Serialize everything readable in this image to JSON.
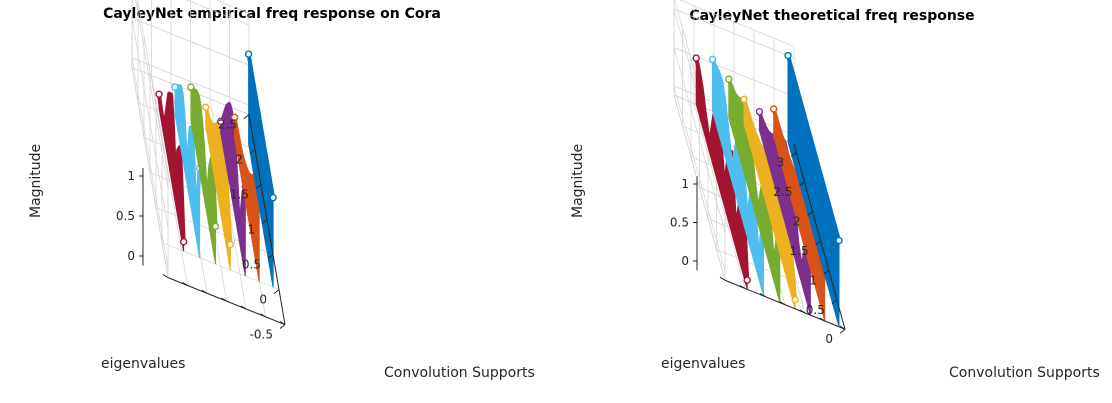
{
  "chart_data": [
    {
      "type": "area",
      "title": "CayleyNet empirical freq response on Cora",
      "xlabel": "eigenvalues",
      "ylabel": "Convolution Supports",
      "zlabel": "Magnitude",
      "xlim": [
        -0.5,
        2.5
      ],
      "zlim": [
        0,
        1
      ],
      "x_ticks": [
        "-0.5",
        "0",
        "0.5",
        "1",
        "1.5",
        "2",
        "2.5"
      ],
      "z_ticks": [
        "0",
        "0.5",
        "1"
      ],
      "grid": true,
      "x": [
        0,
        0.15,
        0.3,
        0.45,
        0.6,
        0.75,
        0.9,
        1.05,
        1.2,
        1.35,
        1.5,
        1.65,
        1.8,
        1.95,
        2.05
      ],
      "series": [
        {
          "color": "#0072bd",
          "values": [
            1.0,
            1.0,
            1.0,
            1.0,
            1.0,
            1.0,
            1.0,
            1.0,
            1.0,
            1.0,
            1.0,
            1.0,
            1.0,
            1.0,
            1.0
          ]
        },
        {
          "color": "#d95319",
          "values": [
            1.0,
            0.97,
            0.9,
            0.8,
            0.68,
            0.55,
            0.44,
            0.35,
            0.28,
            0.22,
            0.18,
            0.16,
            0.15,
            0.14,
            0.14
          ]
        },
        {
          "color": "#7e2f8e",
          "values": [
            1.0,
            0.8,
            0.4,
            0.05,
            0.15,
            0.45,
            0.7,
            0.85,
            0.9,
            0.85,
            0.7,
            0.5,
            0.3,
            0.1,
            0.02
          ]
        },
        {
          "color": "#edb120",
          "values": [
            0.2,
            0.45,
            0.7,
            0.88,
            0.98,
            0.99,
            0.92,
            0.8,
            0.65,
            0.5,
            0.38,
            0.28,
            0.2,
            0.14,
            0.12
          ]
        },
        {
          "color": "#77ac30",
          "values": [
            0.35,
            0.8,
            0.95,
            0.7,
            0.25,
            0.05,
            0.2,
            0.45,
            0.62,
            0.7,
            0.68,
            0.6,
            0.48,
            0.35,
            0.3
          ]
        },
        {
          "color": "#4dbeee",
          "values": [
            1.0,
            0.5,
            0.05,
            0.4,
            0.9,
            0.85,
            0.4,
            0.05,
            0.2,
            0.5,
            0.62,
            0.58,
            0.45,
            0.3,
            0.22
          ]
        },
        {
          "color": "#a2142f",
          "values": [
            0.0,
            0.5,
            0.92,
            0.75,
            0.2,
            0.25,
            0.7,
            0.92,
            0.8,
            0.5,
            0.2,
            0.05,
            0.0,
            0.02,
            0.05
          ]
        }
      ]
    },
    {
      "type": "area",
      "title": "CayleyNet theoretical freq response",
      "xlabel": "eigenvalues",
      "ylabel": "Convolution Supports",
      "zlabel": "Magnitude",
      "xlim": [
        0,
        3.14
      ],
      "zlim": [
        0,
        1
      ],
      "x_ticks": [
        "0",
        "0.5",
        "1",
        "1.5",
        "2",
        "2.5",
        "3"
      ],
      "z_ticks": [
        "0",
        "0.5",
        "1"
      ],
      "grid": true,
      "x": [
        0,
        0.2,
        0.4,
        0.6,
        0.8,
        1.0,
        1.2,
        1.4,
        1.6,
        1.8,
        2.0,
        2.2,
        2.4,
        2.6,
        2.8,
        3.0,
        3.14
      ],
      "series": [
        {
          "color": "#0072bd",
          "values": [
            1.0,
            1.0,
            1.0,
            1.0,
            1.0,
            1.0,
            1.0,
            1.0,
            1.0,
            1.0,
            1.0,
            1.0,
            1.0,
            1.0,
            1.0,
            1.0,
            1.0
          ]
        },
        {
          "color": "#d95319",
          "values": [
            1.0,
            0.98,
            0.93,
            0.86,
            0.78,
            0.69,
            0.6,
            0.52,
            0.45,
            0.39,
            0.34,
            0.3,
            0.27,
            0.25,
            0.24,
            0.23,
            0.23
          ]
        },
        {
          "color": "#7e2f8e",
          "values": [
            1.0,
            0.75,
            0.3,
            0.05,
            0.2,
            0.5,
            0.75,
            0.88,
            0.9,
            0.82,
            0.68,
            0.52,
            0.38,
            0.26,
            0.18,
            0.13,
            0.12
          ]
        },
        {
          "color": "#edb120",
          "values": [
            0.0,
            0.35,
            0.65,
            0.88,
            0.99,
            0.98,
            0.9,
            0.78,
            0.65,
            0.52,
            0.42,
            0.34,
            0.28,
            0.24,
            0.22,
            0.21,
            0.2
          ]
        },
        {
          "color": "#77ac30",
          "values": [
            1.0,
            0.45,
            0.02,
            0.45,
            0.85,
            0.7,
            0.3,
            0.05,
            0.25,
            0.55,
            0.72,
            0.75,
            0.68,
            0.55,
            0.45,
            0.4,
            0.38
          ]
        },
        {
          "color": "#4dbeee",
          "values": [
            1.0,
            0.3,
            0.2,
            0.85,
            0.55,
            0.0,
            0.45,
            0.85,
            0.7,
            0.3,
            0.05,
            0.3,
            0.55,
            0.68,
            0.65,
            0.58,
            0.55
          ]
        },
        {
          "color": "#a2142f",
          "values": [
            0.0,
            0.7,
            0.85,
            0.2,
            0.3,
            0.9,
            0.6,
            0.05,
            0.45,
            0.85,
            0.65,
            0.2,
            0.02,
            0.15,
            0.35,
            0.45,
            0.48
          ]
        }
      ]
    }
  ]
}
